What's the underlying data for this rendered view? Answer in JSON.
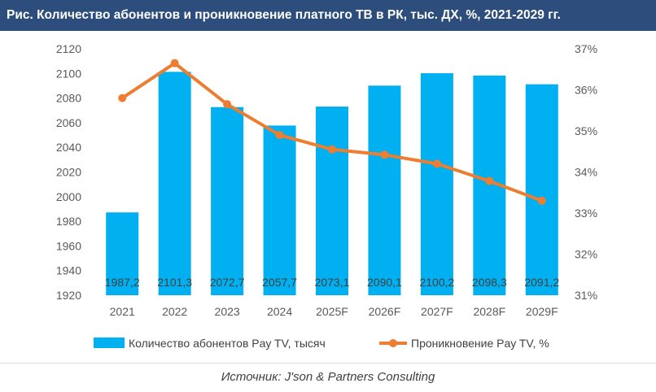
{
  "title": "Рис. Количество абонентов и проникновение платного ТВ в РК, тыс. ДХ, %, 2021-2029 гг.",
  "source": "Источник: J'son & Partners Consulting",
  "colors": {
    "bars": "#00b0f0",
    "line": "#ed7d31",
    "title_bg": "#2d4e7c"
  },
  "chart_data": {
    "type": "bar",
    "categories": [
      "2021",
      "2022",
      "2023",
      "2024",
      "2025F",
      "2026F",
      "2027F",
      "2028F",
      "2029F"
    ],
    "series": [
      {
        "name": "Количество абонентов Pay TV, тысяч",
        "type": "bar",
        "axis": "left",
        "values": [
          1987.2,
          2101.3,
          2072.7,
          2057.7,
          2073.1,
          2090.1,
          2100.2,
          2098.3,
          2091.2
        ],
        "labels": [
          "1987,2",
          "2101,3",
          "2072,7",
          "2057,7",
          "2073,1",
          "2090,1",
          "2100,2",
          "2098,3",
          "2091,2"
        ]
      },
      {
        "name": "Проникновение Pay TV, %",
        "type": "line",
        "axis": "right",
        "values": [
          35.8,
          36.65,
          35.65,
          34.9,
          34.55,
          34.42,
          34.2,
          33.78,
          33.3
        ]
      }
    ],
    "y_left": {
      "min": 1920,
      "max": 2120,
      "step": 20,
      "ticks": [
        "1920",
        "1940",
        "1960",
        "1980",
        "2000",
        "2020",
        "2040",
        "2060",
        "2080",
        "2100",
        "2120"
      ]
    },
    "y_right": {
      "min": 31,
      "max": 37,
      "step": 1,
      "ticks": [
        "31%",
        "32%",
        "33%",
        "34%",
        "35%",
        "36%",
        "37%"
      ]
    },
    "legend_position": "bottom",
    "grid": false
  }
}
